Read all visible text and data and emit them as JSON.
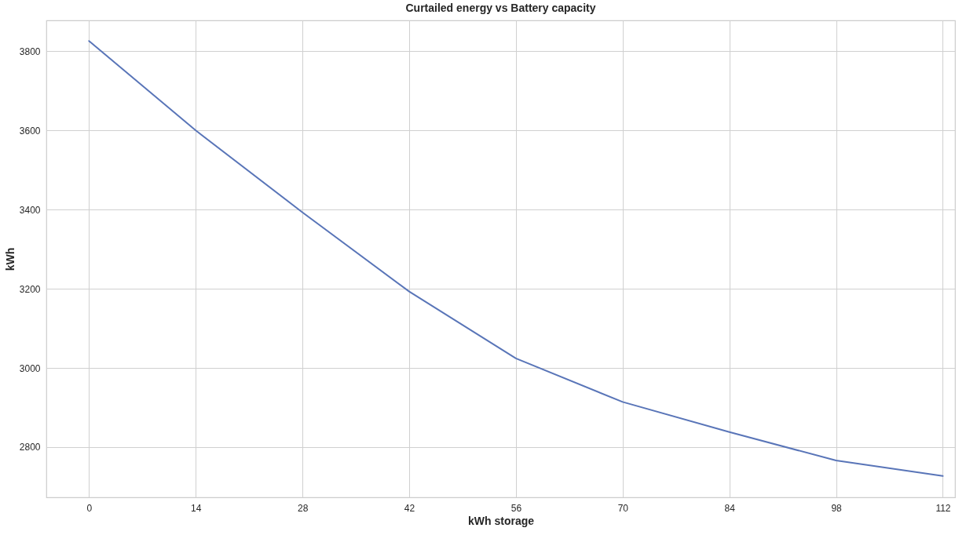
{
  "chart_data": {
    "type": "line",
    "title": "Curtailed energy vs Battery capacity",
    "xlabel": "kWh storage",
    "ylabel": "kWh",
    "x": [
      0,
      14,
      28,
      42,
      56,
      70,
      84,
      98,
      112
    ],
    "series": [
      {
        "color": "#5975b8",
        "values": [
          3826,
          3600,
          3393,
          3193,
          3024,
          2914,
          2838,
          2766,
          2727
        ]
      }
    ],
    "xlim": [
      -5.6,
      113.6
    ],
    "xticks": [
      0,
      14,
      28,
      42,
      56,
      70,
      84,
      98,
      112
    ],
    "ylim": [
      2673,
      3878
    ],
    "yticks": [
      2800,
      3000,
      3200,
      3400,
      3600,
      3800
    ],
    "grid": true,
    "marker": "none",
    "line_style": "solid"
  }
}
